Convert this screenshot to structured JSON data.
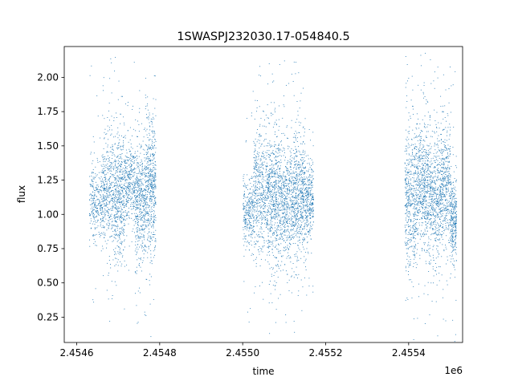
{
  "chart_data": {
    "type": "scatter",
    "title": "1SWASPJ232030.17-054840.5",
    "xlabel": "time",
    "ylabel": "flux",
    "x_offset_label": "1e6",
    "x_scale_power": 6,
    "xlim": [
      2454570,
      2455530
    ],
    "ylim": [
      0.065,
      2.225
    ],
    "x_ticks": [
      2454600,
      2454800,
      2455000,
      2455200,
      2455400
    ],
    "x_tick_labels": [
      "2.4546",
      "2.4548",
      "2.4550",
      "2.4552",
      "2.4554"
    ],
    "y_ticks": [
      0.25,
      0.5,
      0.75,
      1.0,
      1.25,
      1.5,
      1.75,
      2.0
    ],
    "y_tick_labels": [
      "0.25",
      "0.50",
      "0.75",
      "1.00",
      "1.25",
      "1.50",
      "1.75",
      "2.00"
    ],
    "grid": false,
    "marker_color": "#1f77b4",
    "clusters": [
      {
        "x_start": 2454630,
        "x_end": 2454660,
        "center": 1.1,
        "spread": 0.12,
        "count": 260
      },
      {
        "x_start": 2454660,
        "x_end": 2454690,
        "center": 1.18,
        "spread": 0.2,
        "count": 420
      },
      {
        "x_start": 2454690,
        "x_end": 2454715,
        "center": 1.12,
        "spread": 0.24,
        "count": 460
      },
      {
        "x_start": 2454715,
        "x_end": 2454740,
        "center": 1.22,
        "spread": 0.15,
        "count": 320
      },
      {
        "x_start": 2454740,
        "x_end": 2454765,
        "center": 1.08,
        "spread": 0.22,
        "count": 440
      },
      {
        "x_start": 2454765,
        "x_end": 2454790,
        "center": 1.2,
        "spread": 0.25,
        "count": 520
      },
      {
        "x_start": 2455000,
        "x_end": 2455025,
        "center": 1.02,
        "spread": 0.12,
        "count": 260
      },
      {
        "x_start": 2455025,
        "x_end": 2455060,
        "center": 1.15,
        "spread": 0.22,
        "count": 520
      },
      {
        "x_start": 2455060,
        "x_end": 2455090,
        "center": 1.12,
        "spread": 0.25,
        "count": 560
      },
      {
        "x_start": 2455090,
        "x_end": 2455120,
        "center": 1.08,
        "spread": 0.2,
        "count": 480
      },
      {
        "x_start": 2455120,
        "x_end": 2455150,
        "center": 1.15,
        "spread": 0.22,
        "count": 560
      },
      {
        "x_start": 2455150,
        "x_end": 2455170,
        "center": 1.1,
        "spread": 0.14,
        "count": 300
      },
      {
        "x_start": 2455390,
        "x_end": 2455420,
        "center": 1.12,
        "spread": 0.26,
        "count": 520
      },
      {
        "x_start": 2455420,
        "x_end": 2455450,
        "center": 1.22,
        "spread": 0.24,
        "count": 540
      },
      {
        "x_start": 2455450,
        "x_end": 2455475,
        "center": 1.15,
        "spread": 0.22,
        "count": 420
      },
      {
        "x_start": 2455475,
        "x_end": 2455500,
        "center": 1.2,
        "spread": 0.22,
        "count": 420
      },
      {
        "x_start": 2455500,
        "x_end": 2455515,
        "center": 0.98,
        "spread": 0.15,
        "count": 300
      }
    ],
    "outlier_count": 220
  }
}
